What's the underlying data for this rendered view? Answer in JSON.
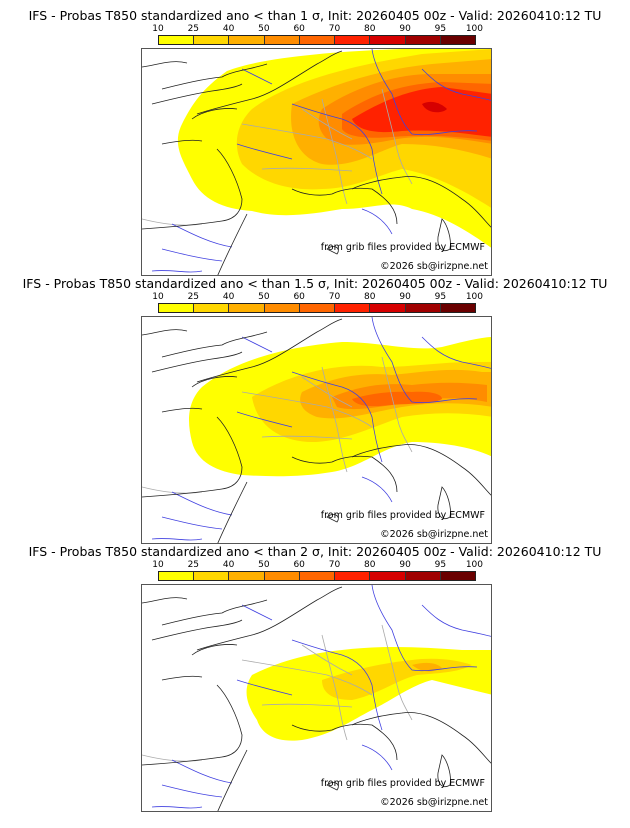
{
  "colorbar": {
    "ticks": [
      "10",
      "25",
      "40",
      "50",
      "60",
      "70",
      "80",
      "90",
      "95",
      "100"
    ],
    "colors": [
      "#ffff00",
      "#ffd700",
      "#ffb000",
      "#ff8c00",
      "#ff6600",
      "#ff2200",
      "#d60000",
      "#a00000",
      "#6a0000"
    ]
  },
  "panels": [
    {
      "title": "IFS - Probas T850  standardized ano < than 1 σ, Init: 20260405 00z - Valid: 20260410:12 TU",
      "credit_source": "from grib files provided by ECMWF",
      "credit_copyright": "©2026 sb@irizpne.net",
      "threshold_sigma": 1
    },
    {
      "title": "IFS - Probas T850  standardized ano < than 1.5 σ, Init: 20260405 00z - Valid: 20260410:12 TU",
      "credit_source": "from grib files provided by ECMWF",
      "credit_copyright": "©2026 sb@irizpne.net",
      "threshold_sigma": 1.5
    },
    {
      "title": "IFS - Probas T850  standardized ano < than 2 σ, Init: 20260405 00z - Valid: 20260410:12 TU",
      "credit_source": "from grib files provided by ECMWF",
      "credit_copyright": "©2026 sb@irizpne.net",
      "threshold_sigma": 2
    }
  ]
}
